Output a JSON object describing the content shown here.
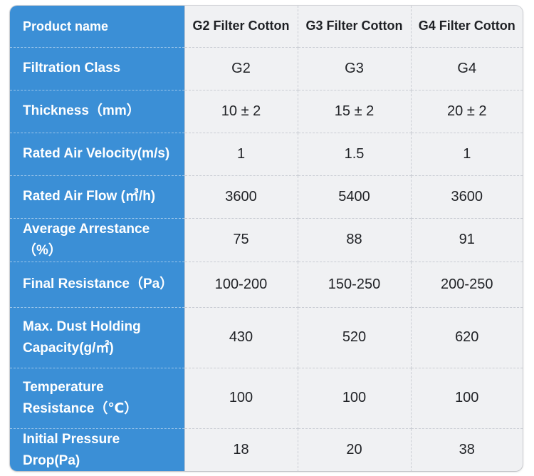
{
  "table": {
    "header": {
      "label": "Product name",
      "columns": [
        "G2 Filter Cotton",
        "G3 Filter Cotton",
        "G4 Filter Cotton"
      ]
    },
    "rows": [
      {
        "label": "Filtration Class",
        "values": [
          "G2",
          "G3",
          "G4"
        ]
      },
      {
        "label": "Thickness（mm）",
        "values": [
          "10 ± 2",
          "15 ± 2",
          "20 ± 2"
        ]
      },
      {
        "label": "Rated Air Velocity(m/s)",
        "values": [
          "1",
          "1.5",
          "1"
        ]
      },
      {
        "label": "Rated Air Flow (㎥/h)",
        "values": [
          "3600",
          "5400",
          "3600"
        ]
      },
      {
        "label": "Average Arrestance（%）",
        "values": [
          "75",
          "88",
          "91"
        ]
      },
      {
        "label": "Final Resistance（Pa）",
        "values": [
          "100-200",
          "150-250",
          "200-250"
        ]
      },
      {
        "label_lines": [
          "Max. Dust Holding",
          "Capacity(g/㎡)"
        ],
        "values": [
          "430",
          "520",
          "620"
        ]
      },
      {
        "label_lines": [
          "Temperature",
          "Resistance（℃）"
        ],
        "values": [
          "100",
          "100",
          "100"
        ]
      },
      {
        "label": "Initial Pressure Drop(Pa)",
        "values": [
          "18",
          "20",
          "38"
        ]
      }
    ]
  }
}
